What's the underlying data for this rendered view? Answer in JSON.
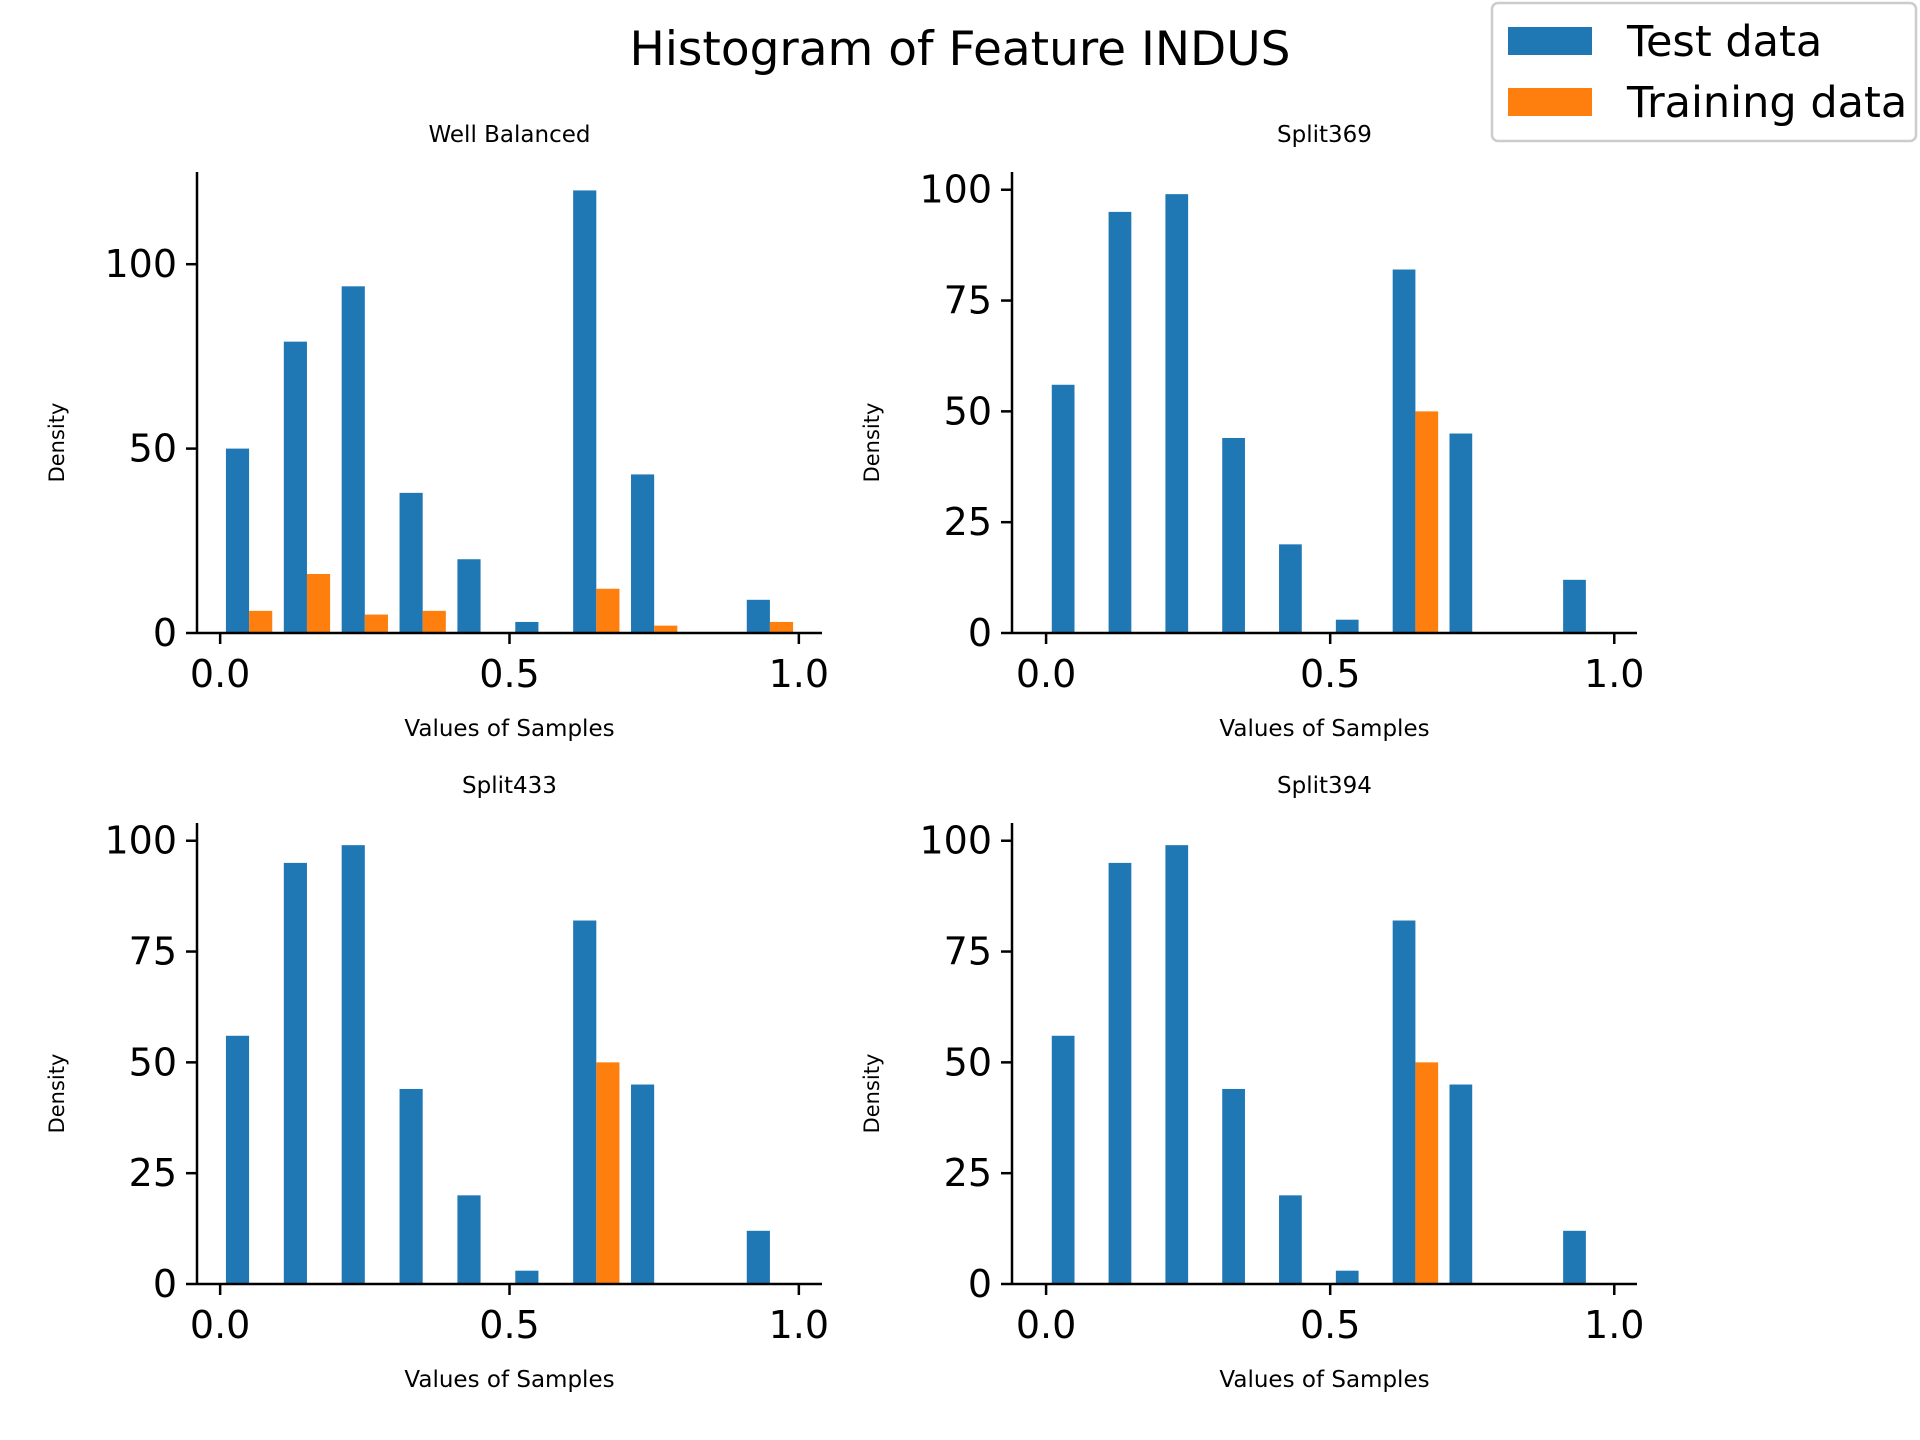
{
  "figure_title": "Histogram of Feature INDUS",
  "legend": {
    "items": [
      {
        "label": "Test data",
        "color": "#1f77b4"
      },
      {
        "label": "Training data",
        "color": "#ff7f0e"
      }
    ]
  },
  "chart_data": [
    {
      "type": "bar",
      "title": "Well Balanced",
      "xlabel": "Values of Samples",
      "ylabel": "Density",
      "xlim": [
        -0.04,
        1.04
      ],
      "ylim": [
        0,
        125
      ],
      "xticks": [
        0.0,
        0.5,
        1.0
      ],
      "xtick_labels": [
        "0.0",
        "0.5",
        "1.0"
      ],
      "yticks": [
        0,
        50,
        100
      ],
      "ytick_labels": [
        "0",
        "50",
        "100"
      ],
      "bin_edges": [
        0.0,
        0.1,
        0.2,
        0.3,
        0.4,
        0.5,
        0.6,
        0.7,
        0.8,
        0.9,
        1.0
      ],
      "series": [
        {
          "name": "Test data",
          "values": [
            50,
            79,
            94,
            38,
            20,
            3,
            120,
            43,
            0,
            9
          ]
        },
        {
          "name": "Training data",
          "values": [
            6,
            16,
            5,
            6,
            0,
            0,
            12,
            2,
            0,
            3
          ]
        }
      ]
    },
    {
      "type": "bar",
      "title": "Split369",
      "xlabel": "Values of Samples",
      "ylabel": "Density",
      "xlim": [
        -0.06,
        1.04
      ],
      "ylim": [
        0,
        104
      ],
      "xticks": [
        0.0,
        0.5,
        1.0
      ],
      "xtick_labels": [
        "0.0",
        "0.5",
        "1.0"
      ],
      "yticks": [
        0,
        25,
        50,
        75,
        100
      ],
      "ytick_labels": [
        "0",
        "25",
        "50",
        "75",
        "100"
      ],
      "bin_edges": [
        0.0,
        0.1,
        0.2,
        0.3,
        0.4,
        0.5,
        0.6,
        0.7,
        0.8,
        0.9,
        1.0
      ],
      "series": [
        {
          "name": "Test data",
          "values": [
            56,
            95,
            99,
            44,
            20,
            3,
            82,
            45,
            0,
            12
          ]
        },
        {
          "name": "Training data",
          "values": [
            0,
            0,
            0,
            0,
            0,
            0,
            50,
            0,
            0,
            0
          ]
        }
      ]
    },
    {
      "type": "bar",
      "title": "Split433",
      "xlabel": "Values of Samples",
      "ylabel": "Density",
      "xlim": [
        -0.04,
        1.04
      ],
      "ylim": [
        0,
        104
      ],
      "xticks": [
        0.0,
        0.5,
        1.0
      ],
      "xtick_labels": [
        "0.0",
        "0.5",
        "1.0"
      ],
      "yticks": [
        0,
        25,
        50,
        75,
        100
      ],
      "ytick_labels": [
        "0",
        "25",
        "50",
        "75",
        "100"
      ],
      "bin_edges": [
        0.0,
        0.1,
        0.2,
        0.3,
        0.4,
        0.5,
        0.6,
        0.7,
        0.8,
        0.9,
        1.0
      ],
      "series": [
        {
          "name": "Test data",
          "values": [
            56,
            95,
            99,
            44,
            20,
            3,
            82,
            45,
            0,
            12
          ]
        },
        {
          "name": "Training data",
          "values": [
            0,
            0,
            0,
            0,
            0,
            0,
            50,
            0,
            0,
            0
          ]
        }
      ]
    },
    {
      "type": "bar",
      "title": "Split394",
      "xlabel": "Values of Samples",
      "ylabel": "Density",
      "xlim": [
        -0.06,
        1.04
      ],
      "ylim": [
        0,
        104
      ],
      "xticks": [
        0.0,
        0.5,
        1.0
      ],
      "xtick_labels": [
        "0.0",
        "0.5",
        "1.0"
      ],
      "yticks": [
        0,
        25,
        50,
        75,
        100
      ],
      "ytick_labels": [
        "0",
        "25",
        "50",
        "75",
        "100"
      ],
      "bin_edges": [
        0.0,
        0.1,
        0.2,
        0.3,
        0.4,
        0.5,
        0.6,
        0.7,
        0.8,
        0.9,
        1.0
      ],
      "series": [
        {
          "name": "Test data",
          "values": [
            56,
            95,
            99,
            44,
            20,
            3,
            82,
            45,
            0,
            12
          ]
        },
        {
          "name": "Training data",
          "values": [
            0,
            0,
            0,
            0,
            0,
            0,
            50,
            0,
            0,
            0
          ]
        }
      ]
    }
  ]
}
